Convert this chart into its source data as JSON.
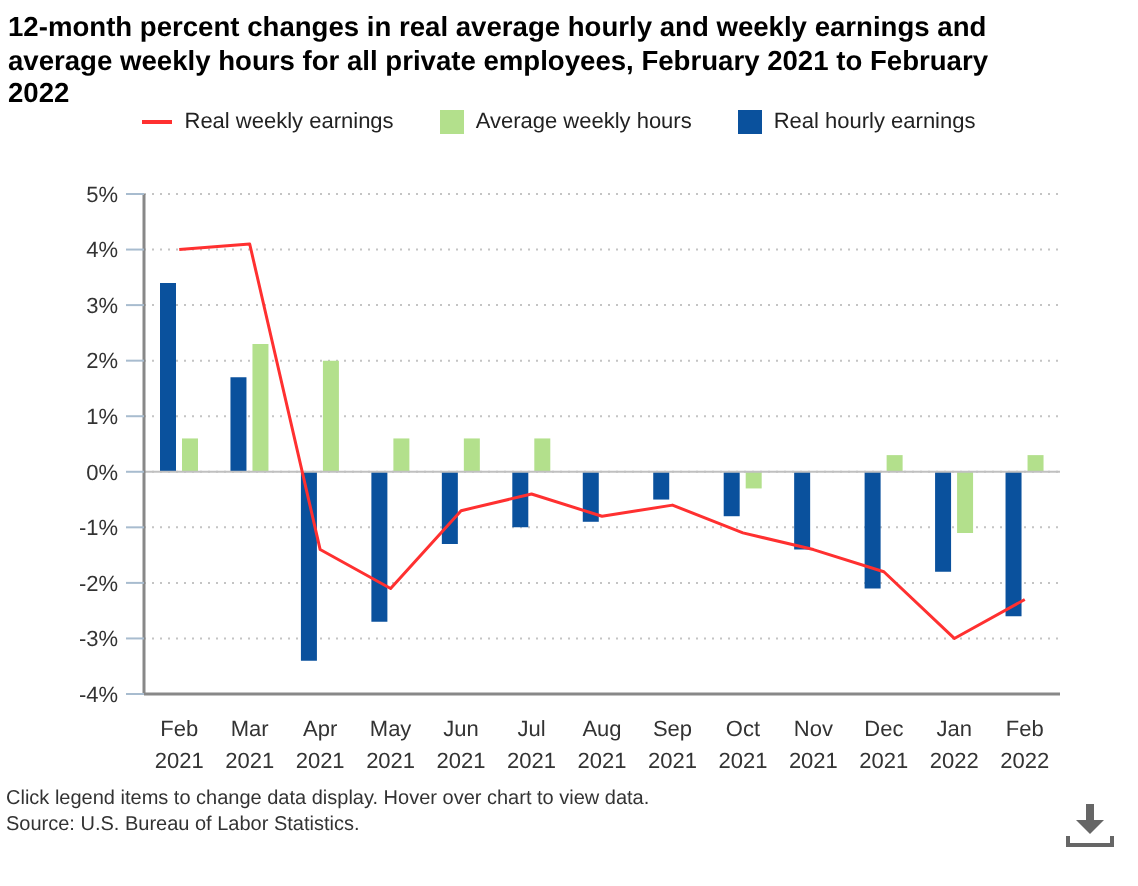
{
  "chart_data": {
    "type": "bar",
    "title": "12-month percent changes in real average hourly and weekly earnings and average weekly hours for all private employees, February 2021 to February 2022",
    "categories": [
      "Feb 2021",
      "Mar 2021",
      "Apr 2021",
      "May 2021",
      "Jun 2021",
      "Jul 2021",
      "Aug 2021",
      "Sep 2021",
      "Oct 2021",
      "Nov 2021",
      "Dec 2021",
      "Jan 2022",
      "Feb 2022"
    ],
    "series": [
      {
        "name": "Real weekly earnings",
        "type": "line",
        "color": "#ff3030",
        "line_style": "solid",
        "marker": "none",
        "values": [
          4.0,
          4.1,
          -1.4,
          -2.1,
          -0.7,
          -0.4,
          -0.8,
          -0.6,
          -1.1,
          -1.4,
          -1.8,
          -3.0,
          -2.3
        ]
      },
      {
        "name": "Average weekly hours",
        "color": "#b3e08c",
        "values": [
          0.6,
          2.3,
          2.0,
          0.6,
          0.6,
          0.6,
          0.0,
          0.0,
          -0.3,
          0.0,
          0.3,
          -1.1,
          0.3
        ]
      },
      {
        "name": "Real hourly earnings",
        "color": "#0a519d",
        "values": [
          3.4,
          1.7,
          -3.4,
          -2.7,
          -1.3,
          -1.0,
          -0.9,
          -0.5,
          -0.8,
          -1.4,
          -2.1,
          -1.8,
          -2.6
        ]
      }
    ],
    "ylim": [
      -4,
      5
    ],
    "yticks": [
      {
        "value": -4,
        "label": "-4%"
      },
      {
        "value": -3,
        "label": "-3%"
      },
      {
        "value": -2,
        "label": "-2%"
      },
      {
        "value": -1,
        "label": "-1%"
      },
      {
        "value": 0,
        "label": "0%"
      },
      {
        "value": 1,
        "label": "1%"
      },
      {
        "value": 2,
        "label": "2%"
      },
      {
        "value": 3,
        "label": "3%"
      },
      {
        "value": 4,
        "label": "4%"
      },
      {
        "value": 5,
        "label": "5%"
      }
    ],
    "grid": "y",
    "legend": "top",
    "ref_lines": [
      {
        "axis": "y",
        "value": 0,
        "color": "#c0c0c0"
      }
    ],
    "annotations": [
      "Click legend items to change data display. Hover over chart to view data.",
      "Source: U.S. Bureau of Labor Statistics."
    ]
  }
}
